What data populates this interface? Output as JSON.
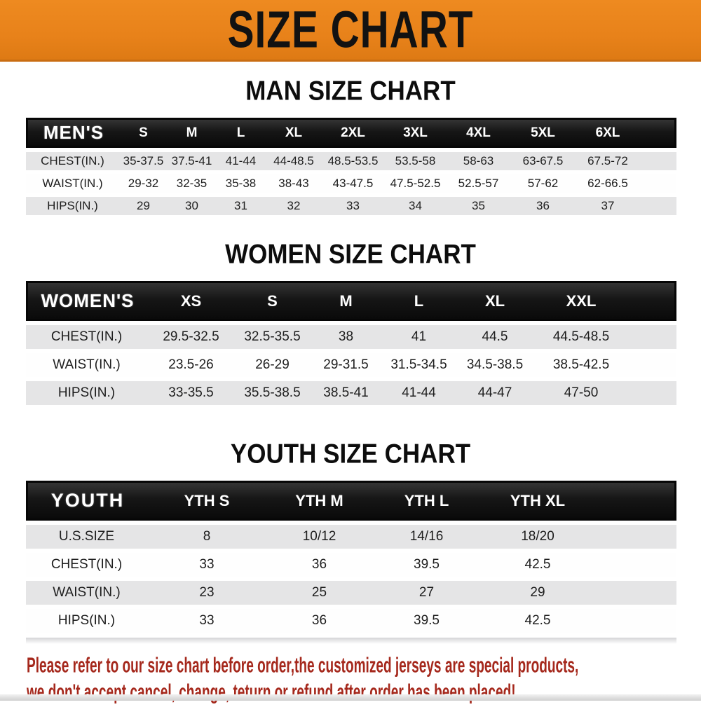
{
  "banner": {
    "title": "SIZE CHART"
  },
  "sections": [
    {
      "heading": "MAN SIZE CHART",
      "group_label": "MEN'S",
      "columns": [
        "S",
        "M",
        "L",
        "XL",
        "2XL",
        "3XL",
        "4XL",
        "5XL",
        "6XL"
      ],
      "rows": [
        {
          "label": "CHEST(IN.)",
          "values": [
            "35-37.5",
            "37.5-41",
            "41-44",
            "44-48.5",
            "48.5-53.5",
            "53.5-58",
            "58-63",
            "63-67.5",
            "67.5-72"
          ]
        },
        {
          "label": "WAIST(IN.)",
          "values": [
            "29-32",
            "32-35",
            "35-38",
            "38-43",
            "43-47.5",
            "47.5-52.5",
            "52.5-57",
            "57-62",
            "62-66.5"
          ]
        },
        {
          "label": "HIPS(IN.)",
          "values": [
            "29",
            "30",
            "31",
            "32",
            "33",
            "34",
            "35",
            "36",
            "37"
          ]
        }
      ]
    },
    {
      "heading": "WOMEN SIZE CHART",
      "group_label": "WOMEN'S",
      "columns": [
        "XS",
        "S",
        "M",
        "L",
        "XL",
        "XXL"
      ],
      "rows": [
        {
          "label": "CHEST(IN.)",
          "values": [
            "29.5-32.5",
            "32.5-35.5",
            "38",
            "41",
            "44.5",
            "44.5-48.5"
          ]
        },
        {
          "label": "WAIST(IN.)",
          "values": [
            "23.5-26",
            "26-29",
            "29-31.5",
            "31.5-34.5",
            "34.5-38.5",
            "38.5-42.5"
          ]
        },
        {
          "label": "HIPS(IN.)",
          "values": [
            "33-35.5",
            "35.5-38.5",
            "38.5-41",
            "41-44",
            "44-47",
            "47-50"
          ]
        }
      ]
    },
    {
      "heading": "YOUTH SIZE CHART",
      "group_label": "YOUTH",
      "columns": [
        "YTH S",
        "YTH M",
        "YTH L",
        "YTH XL"
      ],
      "rows": [
        {
          "label": "U.S.SIZE",
          "values": [
            "8",
            "10/12",
            "14/16",
            "18/20"
          ]
        },
        {
          "label": "CHEST(IN.)",
          "values": [
            "33",
            "36",
            "39.5",
            "42.5"
          ]
        },
        {
          "label": "WAIST(IN.)",
          "values": [
            "23",
            "25",
            "27",
            "29"
          ]
        },
        {
          "label": "HIPS(IN.)",
          "values": [
            "33",
            "36",
            "39.5",
            "42.5"
          ]
        }
      ]
    }
  ],
  "disclaimer": {
    "lines": [
      "Please refer to our size chart before order,the customized jerseys are special products,",
      "we don't accept cancel, change, teturn or refund after order has been placed!"
    ]
  },
  "colors": {
    "banner_bg": "#e8821a",
    "header_bar": "#161616",
    "row_stripe": "#e5e5e6",
    "disclaimer_text": "#a5281c"
  }
}
